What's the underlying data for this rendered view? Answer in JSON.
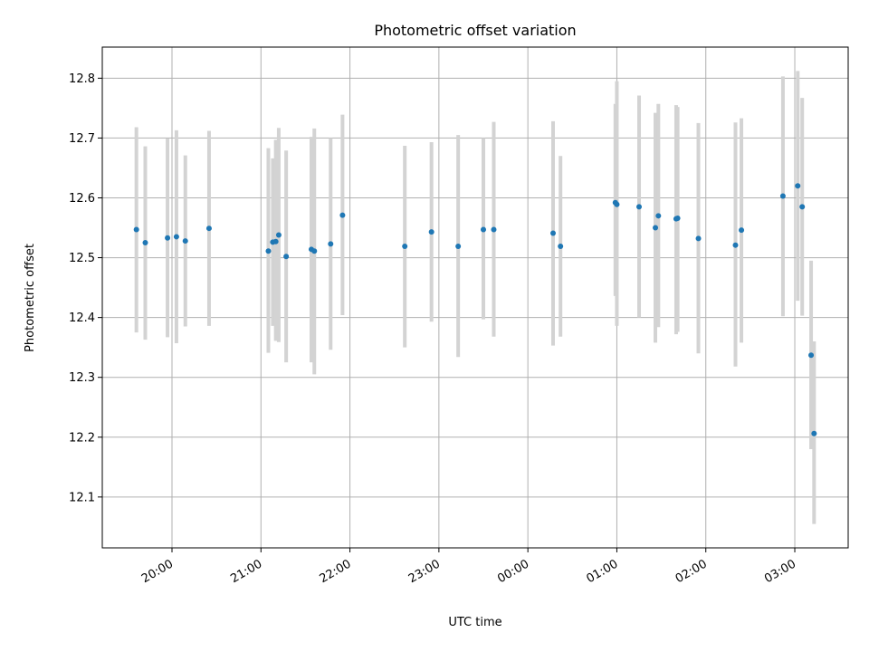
{
  "chart_data": {
    "type": "scatter",
    "title": "Photometric offset variation",
    "xlabel": "UTC time",
    "ylabel": "Photometric offset",
    "x_ticks": [
      "20:00",
      "21:00",
      "22:00",
      "23:00",
      "00:00",
      "01:00",
      "02:00",
      "03:00"
    ],
    "y_ticks": [
      "12.1",
      "12.2",
      "12.3",
      "12.4",
      "12.5",
      "12.6",
      "12.7",
      "12.8"
    ],
    "x_start": "19:13",
    "x_end": "03:36",
    "ylim": [
      12.015,
      12.852
    ],
    "grid": true,
    "colors": {
      "point": "#1f77b4",
      "errorbar": "#d3d3d3"
    },
    "series": [
      {
        "points": [
          {
            "x": "19:36",
            "y": 12.547,
            "ylo": 12.375,
            "yhi": 12.718
          },
          {
            "x": "19:42",
            "y": 12.525,
            "ylo": 12.363,
            "yhi": 12.686
          },
          {
            "x": "19:57",
            "y": 12.533,
            "ylo": 12.367,
            "yhi": 12.699
          },
          {
            "x": "20:03",
            "y": 12.535,
            "ylo": 12.357,
            "yhi": 12.713
          },
          {
            "x": "20:09",
            "y": 12.528,
            "ylo": 12.385,
            "yhi": 12.671
          },
          {
            "x": "20:25",
            "y": 12.549,
            "ylo": 12.386,
            "yhi": 12.712
          },
          {
            "x": "21:05",
            "y": 12.511,
            "ylo": 12.341,
            "yhi": 12.683
          },
          {
            "x": "21:08",
            "y": 12.526,
            "ylo": 12.386,
            "yhi": 12.666
          },
          {
            "x": "21:10",
            "y": 12.527,
            "ylo": 12.361,
            "yhi": 12.697
          },
          {
            "x": "21:12",
            "y": 12.538,
            "ylo": 12.359,
            "yhi": 12.717
          },
          {
            "x": "21:17",
            "y": 12.502,
            "ylo": 12.325,
            "yhi": 12.679
          },
          {
            "x": "21:34",
            "y": 12.514,
            "ylo": 12.325,
            "yhi": 12.702
          },
          {
            "x": "21:36",
            "y": 12.511,
            "ylo": 12.305,
            "yhi": 12.716
          },
          {
            "x": "21:47",
            "y": 12.523,
            "ylo": 12.346,
            "yhi": 12.7
          },
          {
            "x": "21:55",
            "y": 12.571,
            "ylo": 12.404,
            "yhi": 12.739
          },
          {
            "x": "22:37",
            "y": 12.519,
            "ylo": 12.35,
            "yhi": 12.687
          },
          {
            "x": "22:55",
            "y": 12.543,
            "ylo": 12.393,
            "yhi": 12.693
          },
          {
            "x": "23:13",
            "y": 12.519,
            "ylo": 12.334,
            "yhi": 12.705
          },
          {
            "x": "23:30",
            "y": 12.547,
            "ylo": 12.397,
            "yhi": 12.7
          },
          {
            "x": "23:37",
            "y": 12.547,
            "ylo": 12.368,
            "yhi": 12.727
          },
          {
            "x": "00:17",
            "y": 12.541,
            "ylo": 12.353,
            "yhi": 12.728
          },
          {
            "x": "00:22",
            "y": 12.519,
            "ylo": 12.368,
            "yhi": 12.67
          },
          {
            "x": "00:59",
            "y": 12.592,
            "ylo": 12.436,
            "yhi": 12.757
          },
          {
            "x": "01:00",
            "y": 12.589,
            "ylo": 12.386,
            "yhi": 12.795
          },
          {
            "x": "01:15",
            "y": 12.585,
            "ylo": 12.4,
            "yhi": 12.771
          },
          {
            "x": "01:26",
            "y": 12.55,
            "ylo": 12.358,
            "yhi": 12.742
          },
          {
            "x": "01:28",
            "y": 12.57,
            "ylo": 12.384,
            "yhi": 12.757
          },
          {
            "x": "01:40",
            "y": 12.565,
            "ylo": 12.372,
            "yhi": 12.755
          },
          {
            "x": "01:41",
            "y": 12.566,
            "ylo": 12.376,
            "yhi": 12.752
          },
          {
            "x": "01:55",
            "y": 12.532,
            "ylo": 12.34,
            "yhi": 12.725
          },
          {
            "x": "02:20",
            "y": 12.521,
            "ylo": 12.318,
            "yhi": 12.726
          },
          {
            "x": "02:24",
            "y": 12.546,
            "ylo": 12.358,
            "yhi": 12.733
          },
          {
            "x": "02:52",
            "y": 12.603,
            "ylo": 12.402,
            "yhi": 12.803
          },
          {
            "x": "03:02",
            "y": 12.62,
            "ylo": 12.428,
            "yhi": 12.812
          },
          {
            "x": "03:05",
            "y": 12.585,
            "ylo": 12.403,
            "yhi": 12.767
          },
          {
            "x": "03:11",
            "y": 12.337,
            "ylo": 12.18,
            "yhi": 12.495
          },
          {
            "x": "03:13",
            "y": 12.206,
            "ylo": 12.055,
            "yhi": 12.36
          }
        ]
      }
    ]
  }
}
